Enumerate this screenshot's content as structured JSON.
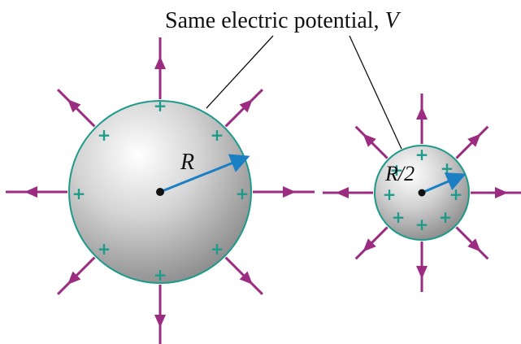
{
  "label": {
    "text": "Same electric potential,",
    "variable": "V"
  },
  "large_sphere": {
    "radius_label": "R"
  },
  "small_sphere": {
    "radius_label": "R/2"
  },
  "charge_symbol": "+"
}
